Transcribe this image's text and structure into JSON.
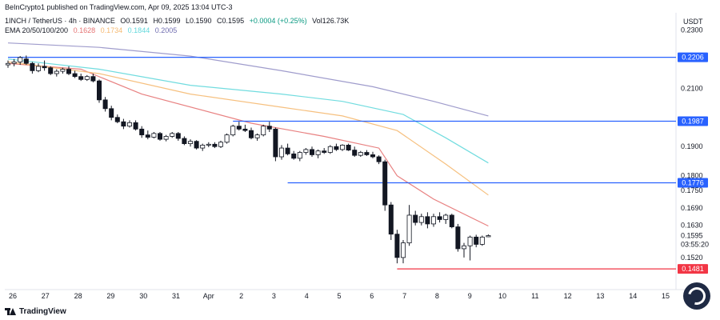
{
  "header": {
    "published": "BeInCrypto1 published on TradingView.com, Apr 09, 2025 13:04 UTC-3",
    "symbol": "1INCH / TetherUS · 4h · BINANCE",
    "open": "O0.1591",
    "high": "H0.1599",
    "low": "L0.1590",
    "close": "C0.1595",
    "change": "+0.0004 (+0.25%)",
    "volume": "Vol126.73K",
    "ema_label": "EMA 20/50/100/200",
    "ema_values": [
      "0.1628",
      "0.1734",
      "0.1844",
      "0.2005"
    ]
  },
  "currency": "USDT",
  "footer": {
    "brand": "TradingView"
  },
  "colors": {
    "up": "#089981",
    "down": "#131722",
    "ema20": "#e57373",
    "ema50": "#f5b971",
    "ema100": "#62d8dc",
    "ema200": "#9591c6",
    "level_blue": "#2962ff",
    "level_red": "#f23645"
  },
  "chart_data": {
    "type": "candlestick",
    "timeframe": "4h",
    "ylim": [
      0.141,
      0.232
    ],
    "y_ticks": [
      "0.2300",
      "0.2100",
      "0.1900",
      "0.1800",
      "0.1750",
      "0.1690",
      "0.1630",
      "0.1520"
    ],
    "x_ticks": [
      "26",
      "27",
      "28",
      "29",
      "30",
      "31",
      "Apr",
      "2",
      "3",
      "4",
      "5",
      "6",
      "7",
      "8",
      "9",
      "10",
      "11",
      "12",
      "13",
      "14",
      "15"
    ],
    "last_price": "0.1595",
    "countdown": "03:55:20",
    "candles": [
      [
        0.218,
        0.2195,
        0.217,
        0.2185
      ],
      [
        0.2185,
        0.22,
        0.2175,
        0.219
      ],
      [
        0.219,
        0.221,
        0.218,
        0.2205
      ],
      [
        0.22,
        0.2212,
        0.218,
        0.2185
      ],
      [
        0.2185,
        0.219,
        0.215,
        0.216
      ],
      [
        0.216,
        0.2185,
        0.2155,
        0.2175
      ],
      [
        0.2175,
        0.2195,
        0.216,
        0.217
      ],
      [
        0.217,
        0.2175,
        0.2145,
        0.215
      ],
      [
        0.215,
        0.2165,
        0.214,
        0.2158
      ],
      [
        0.2158,
        0.217,
        0.215,
        0.2165
      ],
      [
        0.2165,
        0.2175,
        0.2145,
        0.215
      ],
      [
        0.215,
        0.216,
        0.2135,
        0.214
      ],
      [
        0.214,
        0.215,
        0.2125,
        0.213
      ],
      [
        0.213,
        0.2145,
        0.2125,
        0.214
      ],
      [
        0.214,
        0.215,
        0.212,
        0.2125
      ],
      [
        0.2125,
        0.213,
        0.205,
        0.206
      ],
      [
        0.206,
        0.207,
        0.202,
        0.203
      ],
      [
        0.203,
        0.204,
        0.199,
        0.2
      ],
      [
        0.2,
        0.201,
        0.198,
        0.1985
      ],
      [
        0.1985,
        0.1995,
        0.196,
        0.197
      ],
      [
        0.197,
        0.199,
        0.1965,
        0.1982
      ],
      [
        0.1982,
        0.199,
        0.1955,
        0.196
      ],
      [
        0.196,
        0.197,
        0.193,
        0.194
      ],
      [
        0.194,
        0.1955,
        0.1925,
        0.1932
      ],
      [
        0.1932,
        0.195,
        0.1928,
        0.1945
      ],
      [
        0.1945,
        0.195,
        0.192,
        0.1925
      ],
      [
        0.1925,
        0.194,
        0.1918,
        0.1935
      ],
      [
        0.1935,
        0.195,
        0.193,
        0.1945
      ],
      [
        0.1945,
        0.195,
        0.192,
        0.1928
      ],
      [
        0.1928,
        0.1935,
        0.1905,
        0.191
      ],
      [
        0.191,
        0.1925,
        0.19,
        0.1918
      ],
      [
        0.1918,
        0.1922,
        0.189,
        0.1895
      ],
      [
        0.1895,
        0.191,
        0.1885,
        0.1905
      ],
      [
        0.1905,
        0.1915,
        0.1898,
        0.1908
      ],
      [
        0.1908,
        0.1915,
        0.1895,
        0.19
      ],
      [
        0.19,
        0.192,
        0.1895,
        0.1915
      ],
      [
        0.1915,
        0.1945,
        0.191,
        0.194
      ],
      [
        0.194,
        0.1975,
        0.1935,
        0.197
      ],
      [
        0.197,
        0.1985,
        0.1955,
        0.196
      ],
      [
        0.196,
        0.1975,
        0.195,
        0.1955
      ],
      [
        0.1955,
        0.1965,
        0.1925,
        0.193
      ],
      [
        0.193,
        0.1945,
        0.192,
        0.194
      ],
      [
        0.194,
        0.1975,
        0.1935,
        0.197
      ],
      [
        0.197,
        0.1985,
        0.195,
        0.196
      ],
      [
        0.196,
        0.1965,
        0.185,
        0.1865
      ],
      [
        0.1865,
        0.1905,
        0.1855,
        0.1895
      ],
      [
        0.1895,
        0.191,
        0.187,
        0.1875
      ],
      [
        0.1875,
        0.1885,
        0.1855,
        0.186
      ],
      [
        0.186,
        0.1885,
        0.185,
        0.188
      ],
      [
        0.188,
        0.1895,
        0.1872,
        0.189
      ],
      [
        0.189,
        0.19,
        0.1865,
        0.1872
      ],
      [
        0.1872,
        0.189,
        0.186,
        0.1885
      ],
      [
        0.1885,
        0.1895,
        0.1875,
        0.188
      ],
      [
        0.188,
        0.1905,
        0.1875,
        0.19
      ],
      [
        0.19,
        0.191,
        0.1885,
        0.189
      ],
      [
        0.189,
        0.1908,
        0.1885,
        0.1905
      ],
      [
        0.1905,
        0.191,
        0.1885,
        0.1888
      ],
      [
        0.1888,
        0.19,
        0.1865,
        0.187
      ],
      [
        0.187,
        0.1885,
        0.1865,
        0.188
      ],
      [
        0.188,
        0.1888,
        0.1868,
        0.1872
      ],
      [
        0.1872,
        0.1882,
        0.186,
        0.1865
      ],
      [
        0.1865,
        0.187,
        0.184,
        0.1848
      ],
      [
        0.1848,
        0.1855,
        0.168,
        0.17
      ],
      [
        0.17,
        0.171,
        0.158,
        0.16
      ],
      [
        0.16,
        0.1615,
        0.15,
        0.152
      ],
      [
        0.152,
        0.158,
        0.15,
        0.157
      ],
      [
        0.157,
        0.17,
        0.156,
        0.1665
      ],
      [
        0.1665,
        0.168,
        0.163,
        0.164
      ],
      [
        0.164,
        0.167,
        0.163,
        0.166
      ],
      [
        0.166,
        0.1675,
        0.162,
        0.1635
      ],
      [
        0.1635,
        0.167,
        0.1625,
        0.166
      ],
      [
        0.166,
        0.1675,
        0.164,
        0.165
      ],
      [
        0.165,
        0.167,
        0.1635,
        0.1665
      ],
      [
        0.1665,
        0.167,
        0.162,
        0.1625
      ],
      [
        0.1625,
        0.1635,
        0.154,
        0.155
      ],
      [
        0.155,
        0.157,
        0.152,
        0.156
      ],
      [
        0.156,
        0.1595,
        0.151,
        0.159
      ],
      [
        0.159,
        0.1598,
        0.1555,
        0.1565
      ],
      [
        0.1565,
        0.1595,
        0.156,
        0.159
      ],
      [
        0.1591,
        0.1599,
        0.159,
        0.1595
      ]
    ],
    "ema": {
      "ema20": [
        [
          0,
          0.2185
        ],
        [
          12,
          0.2165
        ],
        [
          22,
          0.208
        ],
        [
          40,
          0.198
        ],
        [
          52,
          0.1935
        ],
        [
          61,
          0.1895
        ],
        [
          64,
          0.18
        ],
        [
          70,
          0.172
        ],
        [
          79,
          0.1628
        ]
      ],
      "ema50": [
        [
          0,
          0.219
        ],
        [
          15,
          0.215
        ],
        [
          30,
          0.208
        ],
        [
          45,
          0.2035
        ],
        [
          55,
          0.2005
        ],
        [
          64,
          0.1955
        ],
        [
          72,
          0.184
        ],
        [
          79,
          0.1734
        ]
      ],
      "ema100": [
        [
          0,
          0.22
        ],
        [
          15,
          0.2165
        ],
        [
          30,
          0.211
        ],
        [
          45,
          0.208
        ],
        [
          55,
          0.2055
        ],
        [
          65,
          0.201
        ],
        [
          72,
          0.193
        ],
        [
          79,
          0.1844
        ]
      ],
      "ema200": [
        [
          0,
          0.2255
        ],
        [
          15,
          0.224
        ],
        [
          30,
          0.221
        ],
        [
          45,
          0.216
        ],
        [
          60,
          0.2105
        ],
        [
          70,
          0.2055
        ],
        [
          79,
          0.2005
        ]
      ]
    },
    "levels": [
      {
        "price": 0.2206,
        "label": "0.2206",
        "color": "blue",
        "from": 0
      },
      {
        "price": 0.1987,
        "label": "0.1987",
        "color": "blue",
        "from": 37
      },
      {
        "price": 0.1776,
        "label": "0.1776",
        "color": "blue",
        "from": 46
      },
      {
        "price": 0.1481,
        "label": "0.1481",
        "color": "red",
        "from": 64
      }
    ]
  }
}
